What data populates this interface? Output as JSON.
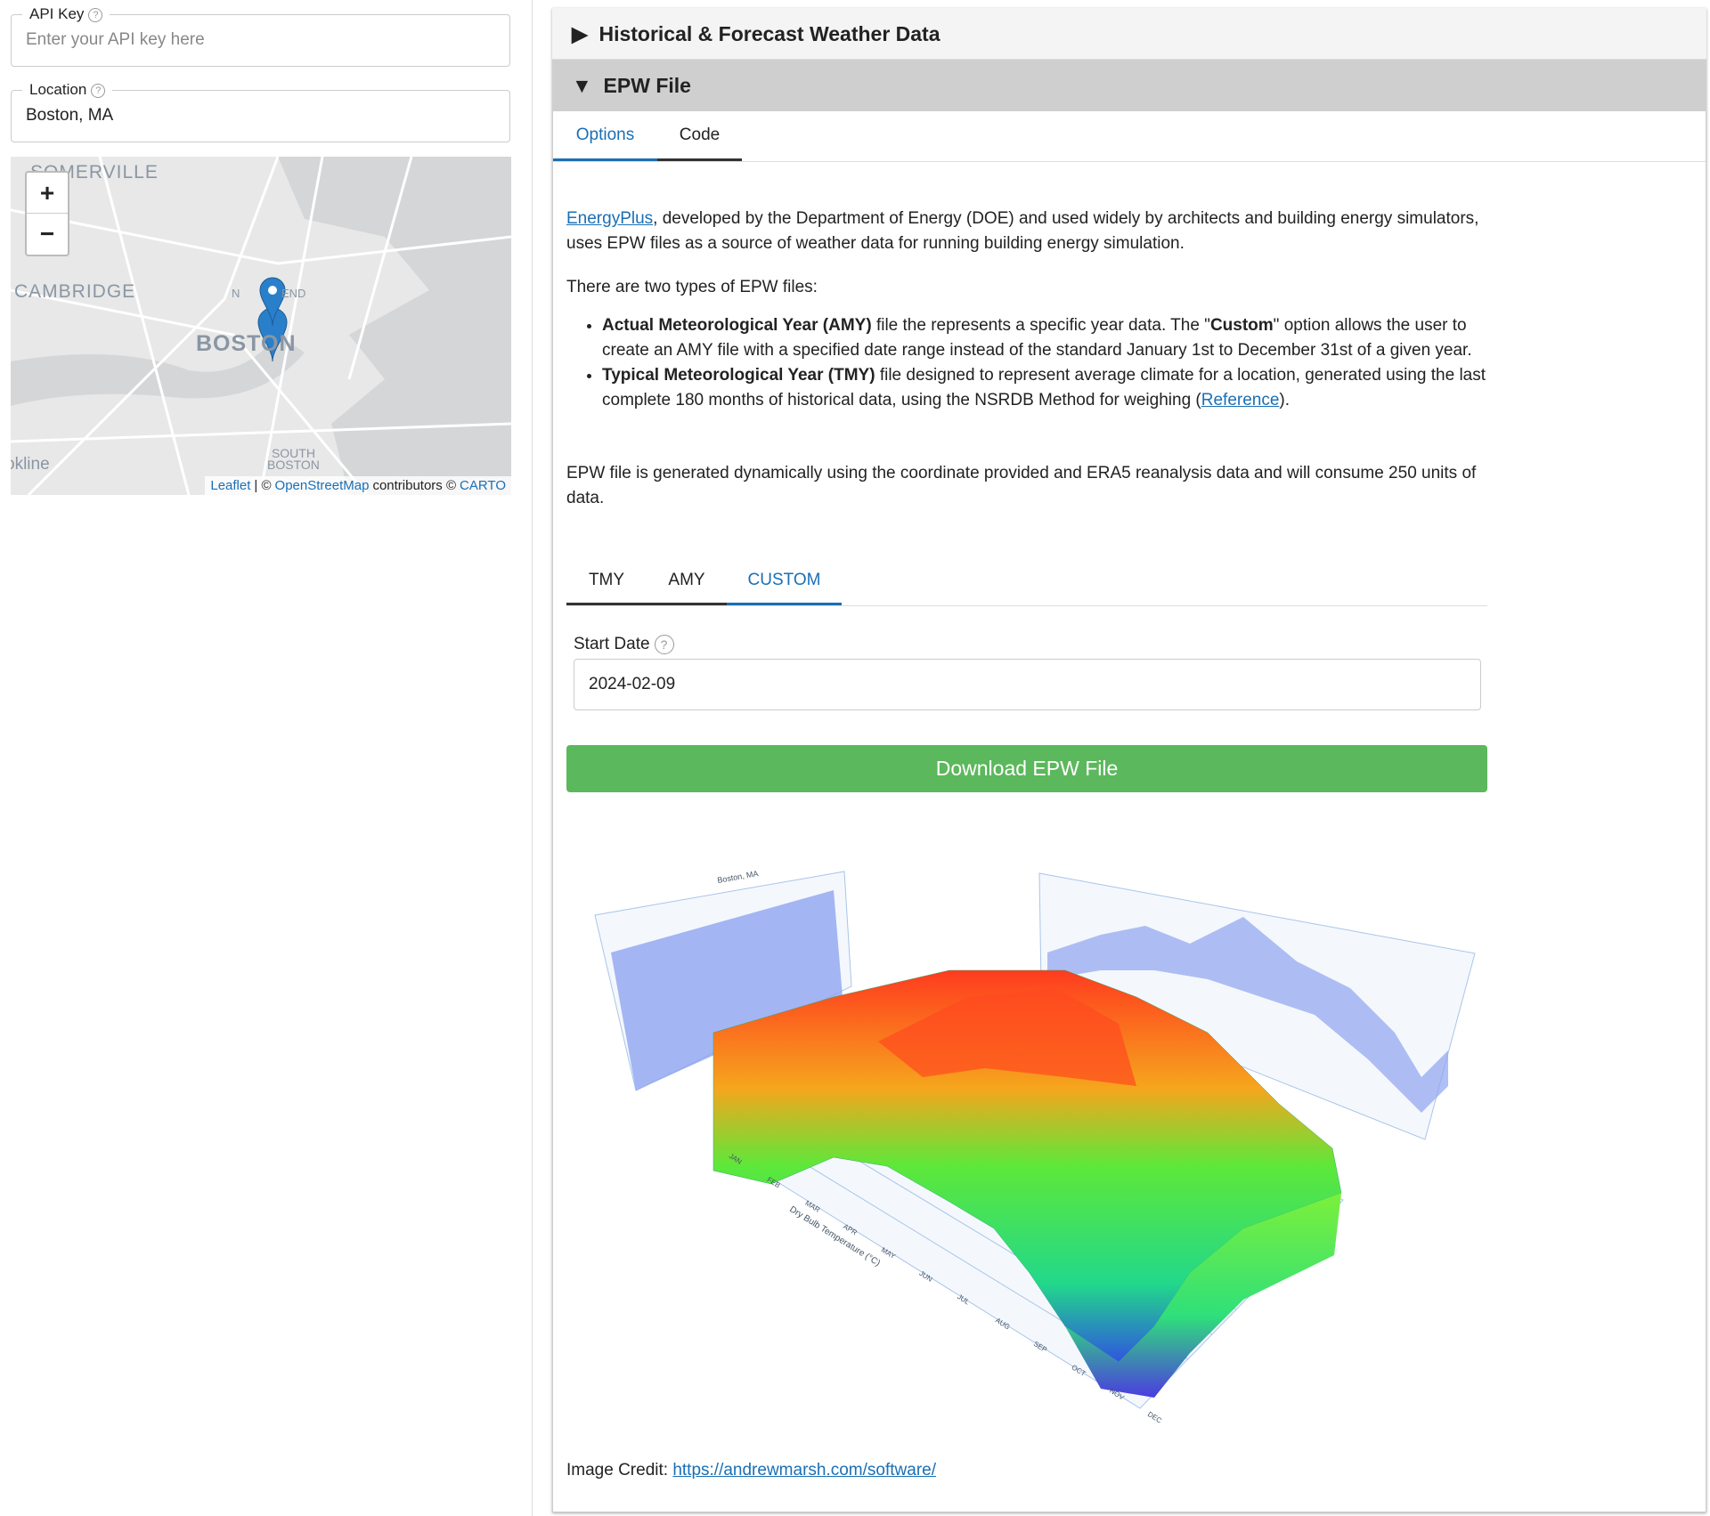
{
  "sidebar": {
    "api_key": {
      "label": "API Key",
      "placeholder": "Enter your API key here"
    },
    "location": {
      "label": "Location",
      "value": "Boston, MA"
    },
    "map": {
      "labels": [
        "SOMERVILLE",
        "CAMBRIDGE",
        "BOSTON",
        "SOUTH",
        "BOSTON",
        "okline",
        "N",
        "END"
      ],
      "zoom_in": "+",
      "zoom_out": "−",
      "attribution": [
        "Leaflet",
        "| ©",
        "OpenStreetMap",
        "contributors ©",
        "CARTO"
      ]
    }
  },
  "main": {
    "accordion": [
      "Historical & Forecast Weather Data",
      "EPW File"
    ],
    "tabs": [
      "Options",
      "Code"
    ],
    "intro": {
      "link": "EnergyPlus",
      "text": ", developed by the Department of Energy (DOE) and used widely by architects and building energy simulators, uses EPW files as a source of weather data for running building energy simulation."
    },
    "types_intro": "There are two types of EPW files:",
    "amy": {
      "bold": "Actual Meteorological Year (AMY)",
      "text1": " file the represents a specific year data. The \"",
      "bold2": "Custom",
      "text2": "\" option allows the user to create an AMY file with a specified date range instead of the standard January 1st to December 31st of a given year."
    },
    "tmy": {
      "bold": "Typical Meteorological Year (TMY)",
      "text1": " file designed to represent average climate for a location, generated using the last complete 180 months of historical data, using the NSRDB Method for weighing (",
      "link": "Reference",
      "text2": ")."
    },
    "note": "EPW file is generated dynamically using the coordinate provided and ERA5 reanalysis data and will consume 250 units of data.",
    "file_tabs": [
      "TMY",
      "AMY",
      "CUSTOM"
    ],
    "start_date": {
      "label": "Start Date",
      "value": "2024-02-09"
    },
    "button": "Download EPW File",
    "figure": {
      "title": "Boston, MA",
      "axis_label": "Dry Bulb Temperature (°C)",
      "months": [
        "JAN",
        "FEB",
        "MAR",
        "APR",
        "MAY",
        "JUN",
        "JUL",
        "AUG",
        "SEP",
        "OCT",
        "NOV",
        "DEC"
      ]
    },
    "credit": {
      "label": "Image Credit:",
      "link": "https://andrewmarsh.com/software/"
    }
  }
}
